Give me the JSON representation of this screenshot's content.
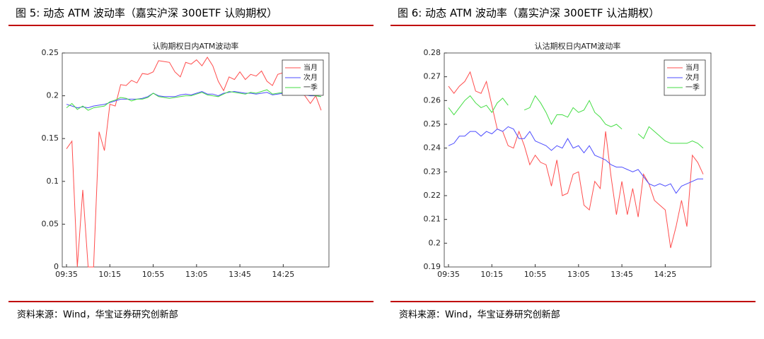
{
  "chart_data": [
    {
      "type": "line",
      "figure_title": "图 5:  动态 ATM 波动率（嘉实沪深 300ETF 认购期权）",
      "title": "认购期权日内ATM波动率",
      "source": "资料来源：Wind，华宝证券研究创新部",
      "categories": [
        "09:35",
        null,
        null,
        null,
        null,
        null,
        null,
        null,
        "10:15",
        null,
        null,
        null,
        null,
        null,
        null,
        null,
        "10:55",
        null,
        null,
        null,
        null,
        null,
        null,
        null,
        "13:05",
        null,
        null,
        null,
        null,
        null,
        null,
        null,
        "13:45",
        null,
        null,
        null,
        null,
        null,
        null,
        null,
        "14:25",
        null,
        null,
        null,
        null,
        null,
        null,
        null
      ],
      "series": [
        {
          "name": "当月",
          "color": "#ff4d4d",
          "values": [
            0.138,
            0.147,
            0,
            0.09,
            0,
            0,
            0.158,
            0.136,
            0.19,
            0.188,
            0.213,
            0.212,
            0.218,
            0.215,
            0.226,
            0.225,
            0.228,
            0.241,
            0.24,
            0.239,
            0.228,
            0.222,
            0.239,
            0.237,
            0.242,
            0.235,
            0.245,
            0.235,
            0.217,
            0.206,
            0.222,
            0.219,
            0.228,
            0.219,
            0.225,
            0.223,
            0.229,
            0.217,
            0.212,
            0.225,
            0.227,
            0.205,
            0.21,
            0.203,
            0.2,
            0.191,
            0.2,
            0.183
          ]
        },
        {
          "name": "次月",
          "color": "#4d4dff",
          "values": [
            0.19,
            0.188,
            0.186,
            0.187,
            0.186,
            0.188,
            0.189,
            0.19,
            0.192,
            0.194,
            0.196,
            0.196,
            0.196,
            0.196,
            0.197,
            0.199,
            0.203,
            0.2,
            0.199,
            0.199,
            0.199,
            0.201,
            0.202,
            0.201,
            0.203,
            0.205,
            0.202,
            0.202,
            0.2,
            0.203,
            0.204,
            0.205,
            0.204,
            0.203,
            0.203,
            0.202,
            0.203,
            0.204,
            0.201,
            0.202,
            0.203,
            0.204,
            0.202,
            0.202,
            0.201,
            0.2,
            0.2,
            0.199
          ]
        },
        {
          "name": "一季",
          "color": "#44dd44",
          "values": [
            0.186,
            0.191,
            0.184,
            0.188,
            0.183,
            0.186,
            0.187,
            0.188,
            0.193,
            0.195,
            0.198,
            0.197,
            0.194,
            0.196,
            0.196,
            0.198,
            0.203,
            0.199,
            0.198,
            0.197,
            0.198,
            0.199,
            0.2,
            0.2,
            0.202,
            0.204,
            0.201,
            0.2,
            0.199,
            0.202,
            0.205,
            0.204,
            0.203,
            0.202,
            0.204,
            0.203,
            0.205,
            0.207,
            0.202,
            0.203,
            0.204,
            0.205,
            0.203,
            0.203,
            0.202,
            0.201,
            0.2,
            0.199
          ]
        }
      ],
      "ylim": [
        0,
        0.25
      ],
      "yticks": [
        0,
        0.05,
        0.1,
        0.15,
        0.2,
        0.25
      ],
      "legend": "upper right",
      "grid": false
    },
    {
      "type": "line",
      "figure_title": "图 6:  动态 ATM 波动率（嘉实沪深 300ETF 认沽期权）",
      "title": "认沽期权日内ATM波动率",
      "source": "资料来源：Wind，华宝证券研究创新部",
      "categories": [
        "09:35",
        null,
        null,
        null,
        null,
        null,
        null,
        null,
        "10:15",
        null,
        null,
        null,
        null,
        null,
        null,
        null,
        "10:55",
        null,
        null,
        null,
        null,
        null,
        null,
        null,
        "13:05",
        null,
        null,
        null,
        null,
        null,
        null,
        null,
        "13:45",
        null,
        null,
        null,
        null,
        null,
        null,
        null,
        "14:25",
        null,
        null,
        null,
        null,
        null,
        null,
        null
      ],
      "series": [
        {
          "name": "当月",
          "color": "#ff4d4d",
          "values": [
            0.266,
            0.263,
            0.266,
            0.268,
            0.272,
            0.264,
            0.263,
            0.268,
            0.258,
            0.248,
            0.247,
            0.241,
            0.24,
            0.247,
            0.241,
            0.233,
            0.237,
            0.234,
            0.233,
            0.224,
            0.235,
            0.22,
            0.221,
            0.229,
            0.23,
            0.216,
            0.214,
            0.226,
            0.223,
            0.247,
            0.228,
            0.212,
            0.226,
            0.212,
            0.223,
            0.211,
            0.229,
            0.225,
            0.218,
            0.216,
            0.214,
            0.198,
            0.207,
            0.218,
            0.207,
            0.237,
            0.234,
            0.229
          ]
        },
        {
          "name": "次月",
          "color": "#4d4dff",
          "values": [
            0.241,
            0.242,
            0.245,
            0.245,
            0.247,
            0.247,
            0.245,
            0.247,
            0.246,
            0.248,
            0.247,
            0.249,
            0.248,
            0.244,
            0.244,
            0.247,
            0.243,
            0.242,
            0.241,
            0.239,
            0.241,
            0.24,
            0.244,
            0.24,
            0.241,
            0.238,
            0.241,
            0.237,
            0.236,
            0.235,
            0.233,
            0.232,
            0.232,
            0.231,
            0.23,
            0.231,
            0.228,
            0.225,
            0.224,
            0.225,
            0.224,
            0.225,
            0.221,
            0.224,
            0.225,
            0.226,
            0.227,
            0.227
          ]
        },
        {
          "name": "一季",
          "color": "#44dd44",
          "values": [
            0.257,
            0.254,
            0.257,
            0.26,
            0.262,
            0.259,
            0.257,
            0.258,
            0.255,
            0.259,
            0.261,
            0.258,
            null,
            null,
            0.256,
            0.257,
            0.262,
            0.259,
            0.255,
            0.25,
            0.254,
            0.254,
            0.253,
            0.257,
            0.255,
            0.256,
            0.26,
            0.255,
            0.253,
            0.25,
            0.249,
            0.25,
            0.248,
            null,
            null,
            0.246,
            0.244,
            0.249,
            0.247,
            0.245,
            0.243,
            0.242,
            0.242,
            0.242,
            0.242,
            0.243,
            0.242,
            0.24
          ]
        }
      ],
      "ylim": [
        0.19,
        0.28
      ],
      "yticks": [
        0.19,
        0.2,
        0.21,
        0.22,
        0.23,
        0.24,
        0.25,
        0.26,
        0.27,
        0.28
      ],
      "legend": "upper right",
      "grid": false
    }
  ]
}
